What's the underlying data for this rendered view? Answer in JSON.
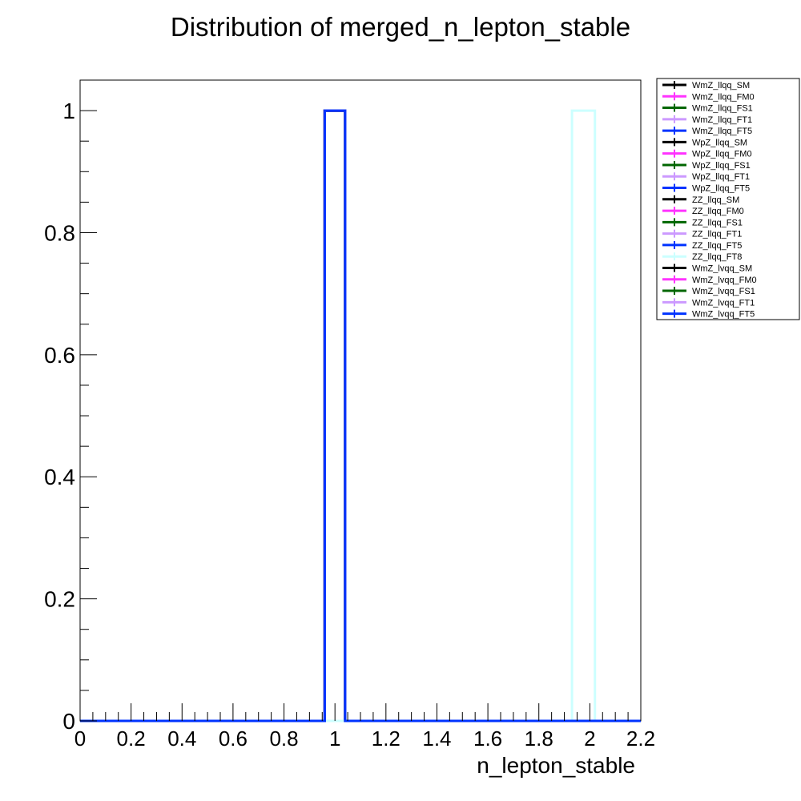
{
  "chart_data": {
    "type": "histogram",
    "title": "Distribution of merged_n_lepton_stable",
    "xlabel": "n_lepton_stable",
    "ylabel": "",
    "xlim": [
      0,
      2.2
    ],
    "ylim": [
      0,
      1.05
    ],
    "x_ticks": [
      "0",
      "0.2",
      "0.4",
      "0.6",
      "0.8",
      "1",
      "1.2",
      "1.4",
      "1.6",
      "1.8",
      "2",
      "2.2"
    ],
    "y_ticks": [
      "0",
      "0.2",
      "0.4",
      "0.6",
      "0.8",
      "1"
    ],
    "grid": false,
    "legend_position": "top-right",
    "series": [
      {
        "name": "WmZ_llqq_SM",
        "color": "#000000",
        "bins": [
          [
            0.96,
            1.04,
            1.0
          ]
        ]
      },
      {
        "name": "WmZ_llqq_FM0",
        "color": "#ff33ff",
        "bins": [
          [
            0.96,
            1.04,
            1.0
          ]
        ]
      },
      {
        "name": "WmZ_llqq_FS1",
        "color": "#006600",
        "bins": [
          [
            0.96,
            1.04,
            1.0
          ]
        ]
      },
      {
        "name": "WmZ_llqq_FT1",
        "color": "#cc99ff",
        "bins": [
          [
            0.96,
            1.04,
            1.0
          ]
        ]
      },
      {
        "name": "WmZ_llqq_FT5",
        "color": "#0033ff",
        "bins": [
          [
            0.96,
            1.04,
            1.0
          ]
        ]
      },
      {
        "name": "WpZ_llqq_SM",
        "color": "#000000",
        "bins": [
          [
            0.96,
            1.04,
            1.0
          ]
        ]
      },
      {
        "name": "WpZ_llqq_FM0",
        "color": "#ff33ff",
        "bins": [
          [
            0.96,
            1.04,
            1.0
          ]
        ]
      },
      {
        "name": "WpZ_llqq_FS1",
        "color": "#006600",
        "bins": [
          [
            0.96,
            1.04,
            1.0
          ]
        ]
      },
      {
        "name": "WpZ_llqq_FT1",
        "color": "#cc99ff",
        "bins": [
          [
            0.96,
            1.04,
            1.0
          ]
        ]
      },
      {
        "name": "WpZ_llqq_FT5",
        "color": "#0033ff",
        "bins": [
          [
            0.96,
            1.04,
            1.0
          ]
        ]
      },
      {
        "name": "ZZ_llqq_SM",
        "color": "#000000",
        "bins": [
          [
            0.96,
            1.04,
            1.0
          ]
        ]
      },
      {
        "name": "ZZ_llqq_FM0",
        "color": "#ff33ff",
        "bins": [
          [
            0.96,
            1.04,
            1.0
          ]
        ]
      },
      {
        "name": "ZZ_llqq_FS1",
        "color": "#006600",
        "bins": [
          [
            0.96,
            1.04,
            1.0
          ]
        ]
      },
      {
        "name": "ZZ_llqq_FT1",
        "color": "#cc99ff",
        "bins": [
          [
            0.96,
            1.04,
            1.0
          ]
        ]
      },
      {
        "name": "ZZ_llqq_FT5",
        "color": "#0033ff",
        "bins": [
          [
            0.96,
            1.04,
            1.0
          ]
        ]
      },
      {
        "name": "ZZ_llqq_FT8",
        "color": "#ccffff",
        "bins": [
          [
            1.93,
            2.02,
            1.0
          ]
        ]
      },
      {
        "name": "WmZ_lvqq_SM",
        "color": "#000000",
        "bins": [
          [
            0.96,
            1.04,
            1.0
          ]
        ]
      },
      {
        "name": "WmZ_lvqq_FM0",
        "color": "#ff33ff",
        "bins": [
          [
            0.96,
            1.04,
            1.0
          ]
        ]
      },
      {
        "name": "WmZ_lvqq_FS1",
        "color": "#006600",
        "bins": [
          [
            0.96,
            1.04,
            1.0
          ]
        ]
      },
      {
        "name": "WmZ_lvqq_FT1",
        "color": "#cc99ff",
        "bins": [
          [
            0.96,
            1.04,
            1.0
          ]
        ]
      },
      {
        "name": "WmZ_lvqq_FT5",
        "color": "#0033ff",
        "bins": [
          [
            0.96,
            1.04,
            1.0
          ]
        ]
      }
    ]
  }
}
